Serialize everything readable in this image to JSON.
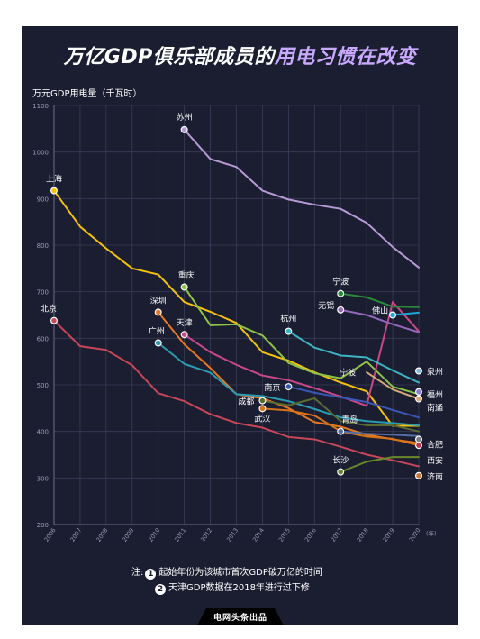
{
  "title_part1": "万亿GDP俱乐部成员的",
  "title_part2": "用电习惯在改变",
  "footer_text": "电网头条出品",
  "notes": {
    "prefix": "注:",
    "marker1": "1",
    "marker2": "2",
    "line1": "起始年份为该城市首次GDP破万亿的时间",
    "line2": "天津GDP数据在2018年进行过下修"
  },
  "chart_data": {
    "type": "line",
    "ylabel": "万元GDP用电量（千瓦时）",
    "xlabel_unit": "(年)",
    "x": [
      2006,
      2007,
      2008,
      2009,
      2010,
      2011,
      2012,
      2013,
      2014,
      2015,
      2016,
      2017,
      2018,
      2019,
      2020
    ],
    "yticks": [
      200,
      300,
      400,
      500,
      600,
      700,
      800,
      900,
      1000,
      1100
    ],
    "ylim": [
      200,
      1100
    ],
    "grid": true,
    "series": [
      {
        "name": "苏州",
        "color": "#b59ad6",
        "values": [
          null,
          null,
          null,
          null,
          null,
          1048,
          985,
          968,
          917,
          898,
          887,
          878,
          848,
          796,
          752
        ]
      },
      {
        "name": "上海",
        "color": "#f5c20a",
        "values": [
          917,
          840,
          793,
          750,
          737,
          678,
          657,
          633,
          570,
          552,
          527,
          505,
          486,
          412,
          412
        ]
      },
      {
        "name": "北京",
        "color": "#c9465a",
        "values": [
          638,
          583,
          575,
          542,
          482,
          465,
          437,
          418,
          408,
          388,
          383,
          367,
          350,
          338,
          325
        ]
      },
      {
        "name": "重庆",
        "color": "#8ec24a",
        "values": [
          null,
          null,
          null,
          null,
          null,
          710,
          628,
          630,
          606,
          547,
          525,
          514,
          550,
          496,
          480
        ]
      },
      {
        "name": "深圳",
        "color": "#e87722",
        "values": [
          null,
          null,
          null,
          null,
          656,
          587,
          536,
          480,
          471,
          450,
          420,
          410,
          393,
          383,
          375
        ]
      },
      {
        "name": "天津",
        "color": "#c8488a",
        "values": [
          null,
          null,
          null,
          null,
          null,
          608,
          570,
          543,
          520,
          510,
          493,
          475,
          455,
          678,
          615
        ]
      },
      {
        "name": "广州",
        "color": "#2a9bb0",
        "values": [
          null,
          null,
          null,
          null,
          590,
          545,
          526,
          480,
          476,
          465,
          448,
          430,
          422,
          418,
          413
        ]
      },
      {
        "name": "杭州",
        "color": "#3cb5c2",
        "values": [
          null,
          null,
          null,
          null,
          null,
          null,
          null,
          null,
          null,
          615,
          580,
          563,
          559,
          531,
          505
        ]
      },
      {
        "name": "宁波",
        "color": "#2a8a3a",
        "values": [
          null,
          null,
          null,
          null,
          null,
          null,
          null,
          null,
          null,
          null,
          null,
          696,
          688,
          668,
          667
        ]
      },
      {
        "name": "无锡",
        "color": "#9467bd",
        "values": [
          null,
          null,
          null,
          null,
          null,
          null,
          null,
          null,
          null,
          null,
          null,
          661,
          650,
          630,
          613
        ]
      },
      {
        "name": "佛山",
        "color": "#1fa6d9",
        "values": [
          null,
          null,
          null,
          null,
          null,
          null,
          null,
          null,
          null,
          null,
          null,
          null,
          null,
          650,
          655
        ]
      },
      {
        "name": "成都",
        "color": "#5a6b30",
        "values": [
          null,
          null,
          null,
          null,
          null,
          null,
          null,
          null,
          466,
          456,
          471,
          422,
          413,
          413,
          400
        ]
      },
      {
        "name": "武汉",
        "color": "#d9731a",
        "values": [
          null,
          null,
          null,
          null,
          null,
          null,
          null,
          null,
          449,
          445,
          434,
          400,
          389,
          384,
          370
        ]
      },
      {
        "name": "南京",
        "color": "#3a57b6",
        "values": [
          null,
          null,
          null,
          null,
          null,
          null,
          null,
          null,
          null,
          496,
          483,
          473,
          463,
          446,
          430
        ]
      },
      {
        "name": "青岛",
        "color": "#5570a8",
        "values": [
          null,
          null,
          null,
          null,
          null,
          null,
          null,
          null,
          null,
          null,
          null,
          400,
          395,
          393,
          390
        ]
      },
      {
        "name": "南通",
        "color": "#d6a978",
        "values": [
          null,
          null,
          null,
          null,
          null,
          null,
          null,
          null,
          null,
          null,
          null,
          null,
          527,
          490,
          470
        ]
      },
      {
        "name": "福州",
        "color": "#8a7fd0",
        "values": [
          null,
          null,
          null,
          null,
          null,
          null,
          null,
          null,
          null,
          null,
          null,
          null,
          null,
          null,
          485
        ]
      },
      {
        "name": "泉州",
        "color": "#8cb8d8",
        "values": [
          null,
          null,
          null,
          null,
          null,
          null,
          null,
          null,
          null,
          null,
          null,
          null,
          null,
          null,
          530
        ]
      },
      {
        "name": "长沙",
        "color": "#6a8a2a",
        "values": [
          null,
          null,
          null,
          null,
          null,
          null,
          null,
          null,
          null,
          null,
          null,
          313,
          335,
          345,
          345
        ]
      },
      {
        "name": "济南",
        "color": "#c47a3a",
        "values": [
          null,
          null,
          null,
          null,
          null,
          null,
          null,
          null,
          null,
          null,
          null,
          null,
          null,
          null,
          305
        ]
      },
      {
        "name": "合肥",
        "color": "#7e7e7e",
        "values": [
          null,
          null,
          null,
          null,
          null,
          null,
          null,
          null,
          null,
          null,
          null,
          null,
          null,
          null,
          383
        ]
      },
      {
        "name": "西安",
        "color": "#b83a50",
        "values": [
          null,
          null,
          null,
          null,
          null,
          null,
          null,
          null,
          null,
          null,
          null,
          null,
          null,
          null,
          370
        ]
      }
    ]
  }
}
